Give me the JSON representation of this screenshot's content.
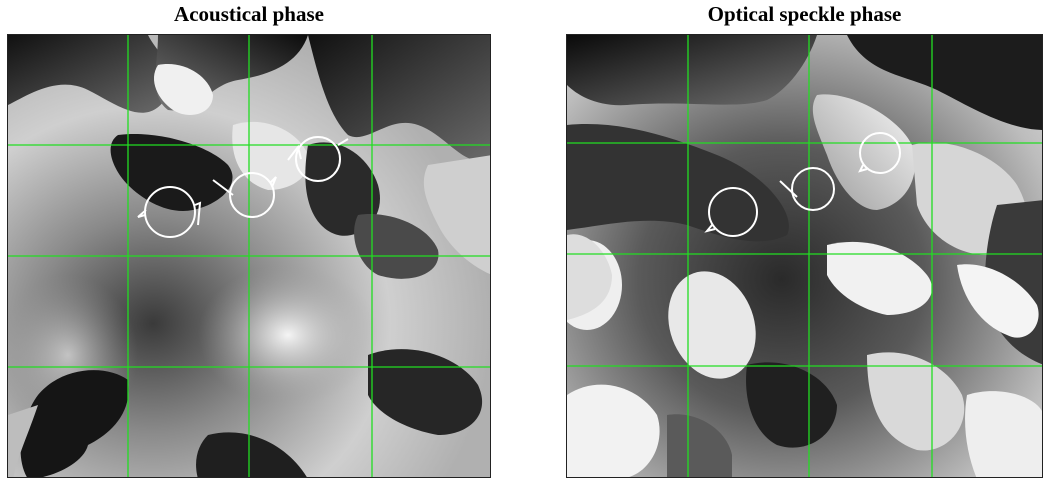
{
  "figure": {
    "left_title": "Acoustical phase",
    "right_title": "Optical speckle phase"
  },
  "colors": {
    "grid": "#22dd22",
    "annotation": "#ffffff",
    "border": "#222222"
  },
  "panels": [
    {
      "key": "acoustical",
      "grid": "4x4",
      "vortex_markers": 3
    },
    {
      "key": "optical",
      "grid": "4x4",
      "vortex_markers": 3
    }
  ]
}
